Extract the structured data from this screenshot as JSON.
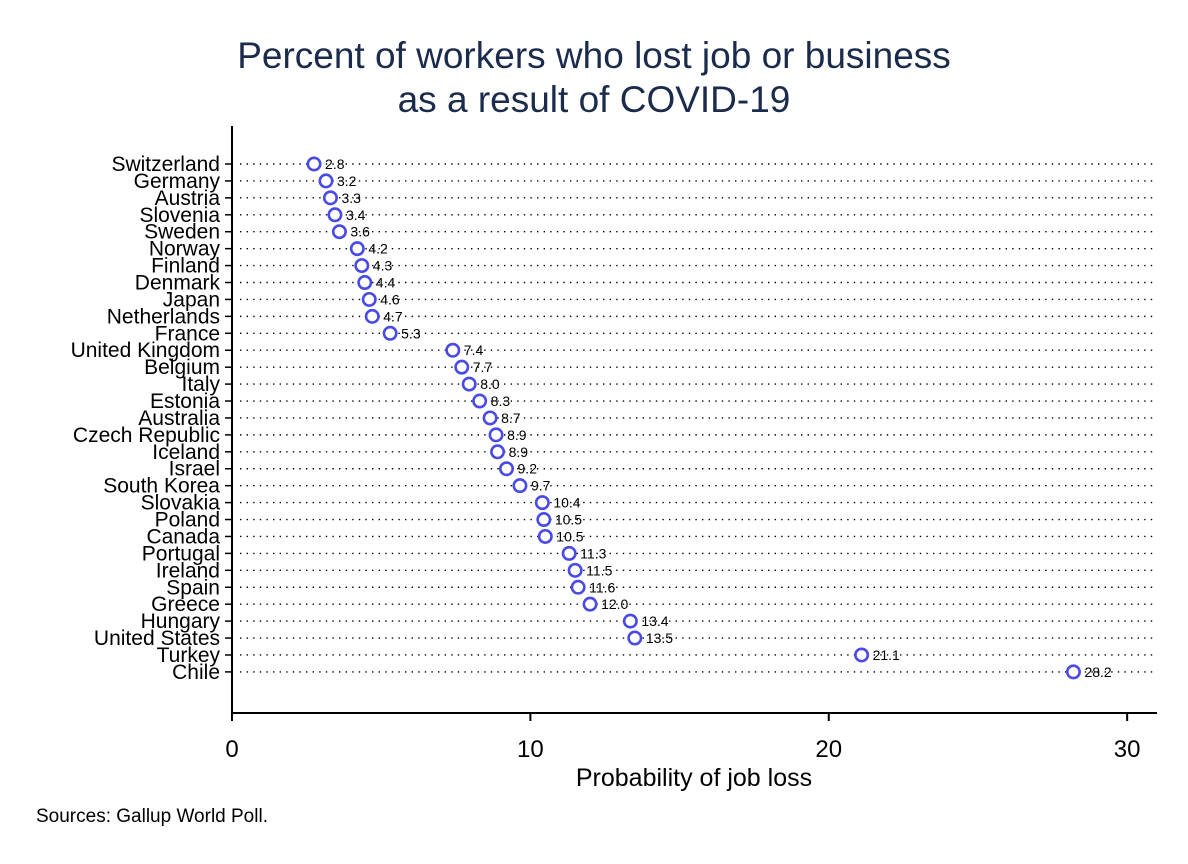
{
  "chart_data": {
    "type": "scatter",
    "title": [
      "Percent of workers who lost job or business",
      "as a result of COVID-19"
    ],
    "xlabel": "Probability of job loss",
    "xlim": [
      0,
      31
    ],
    "xticks": [
      0,
      10,
      20,
      30
    ],
    "grid": "dotted horizontal lines per category",
    "marker_color": "#4a4ae6",
    "note": "Sources: Gallup World Poll.",
    "categories": [
      "Switzerland",
      "Germany",
      "Austria",
      "Slovenia",
      "Sweden",
      "Norway",
      "Finland",
      "Denmark",
      "Japan",
      "Netherlands",
      "France",
      "United Kingdom",
      "Belgium",
      "Italy",
      "Estonia",
      "Australia",
      "Czech Republic",
      "Iceland",
      "Israel",
      "South Korea",
      "Slovakia",
      "Poland",
      "Canada",
      "Portugal",
      "Ireland",
      "Spain",
      "Greece",
      "Hungary",
      "United States",
      "Turkey",
      "Chile"
    ],
    "values": [
      2.75,
      3.15,
      3.3,
      3.45,
      3.6,
      4.2,
      4.35,
      4.45,
      4.6,
      4.7,
      5.3,
      7.4,
      7.7,
      7.95,
      8.3,
      8.65,
      8.85,
      8.9,
      9.2,
      9.65,
      10.4,
      10.45,
      10.5,
      11.3,
      11.5,
      11.6,
      12.0,
      13.35,
      13.5,
      21.1,
      28.2
    ],
    "labels": [
      "2.8",
      "3.2",
      "3.3",
      "3.4",
      "3.6",
      "4.2",
      "4.3",
      "4.4",
      "4.6",
      "4.7",
      "5.3",
      "7.4",
      "7.7",
      "8.0",
      "8.3",
      "8.7",
      "8.9",
      "8.9",
      "9.2",
      "9.7",
      "10.4",
      "10.5",
      "10.5",
      "11.3",
      "11.5",
      "11.6",
      "12.0",
      "13.4",
      "13.5",
      "21.1",
      "28.2"
    ]
  }
}
